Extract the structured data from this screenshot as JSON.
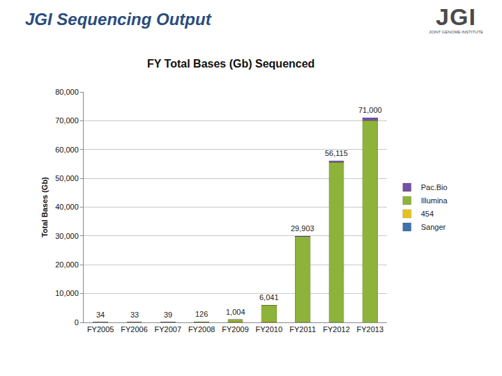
{
  "page": {
    "heading": "JGI Sequencing Output",
    "logo": "JGI",
    "logo_subtitle": "JOINT GENOME INSTITUTE"
  },
  "chart_data": {
    "type": "bar",
    "title": "FY Total Bases (Gb) Sequenced",
    "y_label": "Total Bases (Gb)",
    "categories": [
      "FY2005",
      "FY2006",
      "FY2007",
      "FY2008",
      "FY2009",
      "FY2010",
      "FY2011",
      "FY2012",
      "FY2013"
    ],
    "series": [
      {
        "name": "Sanger",
        "color": "#3f73b0",
        "values": [
          34,
          33,
          39,
          30,
          20,
          10,
          3,
          0,
          0
        ]
      },
      {
        "name": "454",
        "color": "#e8c21c",
        "values": [
          0,
          0,
          0,
          80,
          150,
          200,
          100,
          15,
          0
        ]
      },
      {
        "name": "Illumina",
        "color": "#8db33a",
        "values": [
          0,
          0,
          0,
          16,
          834,
          5831,
          29700,
          55500,
          70000
        ]
      },
      {
        "name": "Pac.Bio",
        "color": "#7551a3",
        "values": [
          0,
          0,
          0,
          0,
          0,
          0,
          100,
          600,
          1000
        ]
      }
    ],
    "totals": [
      34,
      33,
      39,
      126,
      1004,
      6041,
      29903,
      56115,
      71000
    ],
    "total_labels": [
      "34",
      "33",
      "39",
      "126",
      "1,004",
      "6,041",
      "29,903",
      "56,115",
      "71,000"
    ],
    "stacked": true,
    "legend": "right",
    "grid": true,
    "ylim": [
      0,
      80000
    ],
    "yticks": [
      0,
      {
        "value": 10000,
        "label": "10,000"
      },
      {
        "value": 20000,
        "label": "20,000"
      },
      {
        "value": 30000,
        "label": "30,000"
      },
      {
        "value": 40000,
        "label": "40,000"
      },
      {
        "value": 50000,
        "label": "50,000"
      },
      {
        "value": 60000,
        "label": "60,000"
      },
      {
        "value": 70000,
        "label": "70,000"
      },
      {
        "value": 80000,
        "label": "80,000"
      }
    ]
  }
}
